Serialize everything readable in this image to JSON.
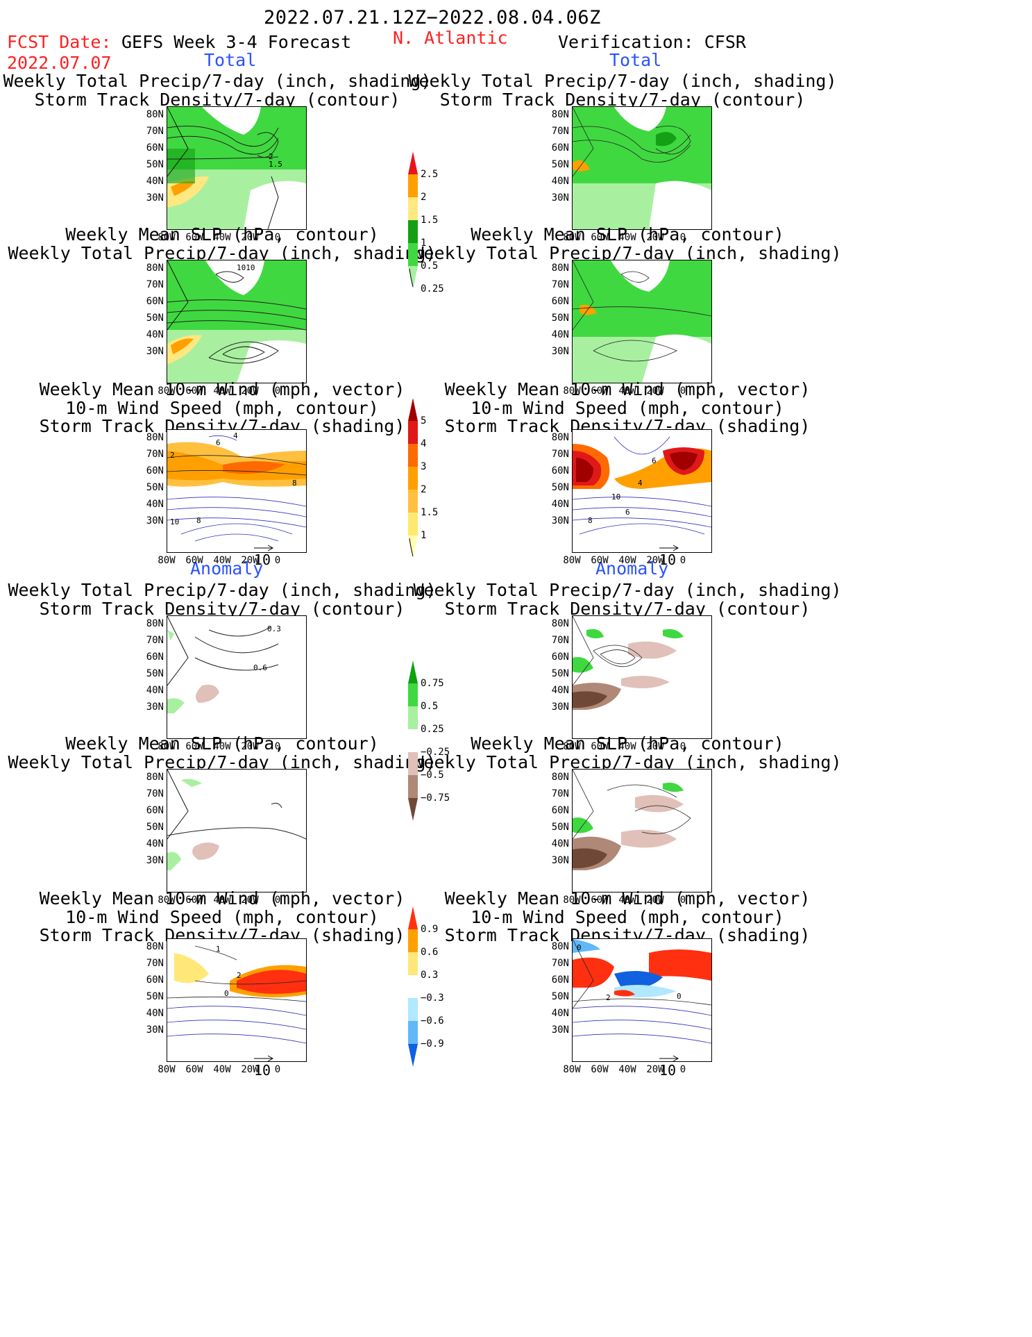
{
  "header": {
    "period": "2022.07.21.12Z−2022.08.04.06Z",
    "fcst_label": "FCST Date:",
    "fcst_date": "2022.07.07",
    "model": "GEFS Week 3-4 Forecast",
    "region": "N. Atlantic",
    "verification": "Verification: CFSR"
  },
  "sections": {
    "total": "Total",
    "anomaly": "Anomaly"
  },
  "titles": {
    "precip_storm": [
      "Weekly Total Precip/7-day (inch, shading)",
      "Storm Track Density/7-day (contour)"
    ],
    "slp_precip": [
      "Weekly Mean SLP (hPa, contour)",
      "Weekly Total Precip/7-day (inch, shading)"
    ],
    "wind_storm": [
      "Weekly Mean 10-m Wind (mph, vector)",
      "10-m Wind Speed (mph, contour)",
      "Storm Track Density/7-day (shading)"
    ]
  },
  "axes": {
    "lat_labels": [
      "80N",
      "70N",
      "60N",
      "50N",
      "40N",
      "30N"
    ],
    "lon_labels": [
      "80W",
      "60W",
      "40W",
      "20W",
      "0"
    ]
  },
  "vector_scale": "10",
  "colorbars": [
    {
      "labels": [
        "2.5",
        "2",
        "1.5",
        "1",
        "0.5",
        "0.25"
      ],
      "colors": [
        "#e8141c",
        "#ffa000",
        "#ffe880",
        "#14a014",
        "#40d840",
        "#a8f0a0"
      ]
    },
    {
      "labels": [
        "5",
        "4",
        "3",
        "2",
        "1.5",
        "1"
      ],
      "colors": [
        "#a00000",
        "#e01818",
        "#ff6a00",
        "#ffa000",
        "#ffc040",
        "#ffe870",
        "#ffffb0"
      ]
    },
    {
      "labels": [
        "0.75",
        "0.5",
        "0.25",
        "−0.25",
        "−0.5",
        "−0.75"
      ],
      "colors": [
        "#10a010",
        "#40d840",
        "#a8f0a0",
        "#ffffff",
        "#e0c0b8",
        "#b08878",
        "#704838"
      ]
    },
    {
      "labels": [
        "0.9",
        "0.6",
        "0.3",
        "−0.3",
        "−0.6",
        "−0.9"
      ],
      "colors": [
        "#ff3010",
        "#ffa000",
        "#ffe878",
        "#ffffff",
        "#b0e8ff",
        "#60b8f8",
        "#1060e0"
      ]
    }
  ],
  "map_labels": {
    "stormtrack_total_fc": [
      "2",
      "1.5"
    ],
    "slp_total_fc": "1010",
    "wind_total_fc": [
      "6",
      "4",
      "2",
      "10",
      "8",
      "8"
    ],
    "wind_total_ob": [
      "6",
      "4",
      "10",
      "8",
      "6"
    ],
    "storm_anom_fc": [
      "0.3",
      "0.6"
    ],
    "wind_anom_fc": [
      "1",
      "2",
      "0"
    ],
    "wind_anom_ob": [
      "0",
      "2",
      "0"
    ]
  }
}
